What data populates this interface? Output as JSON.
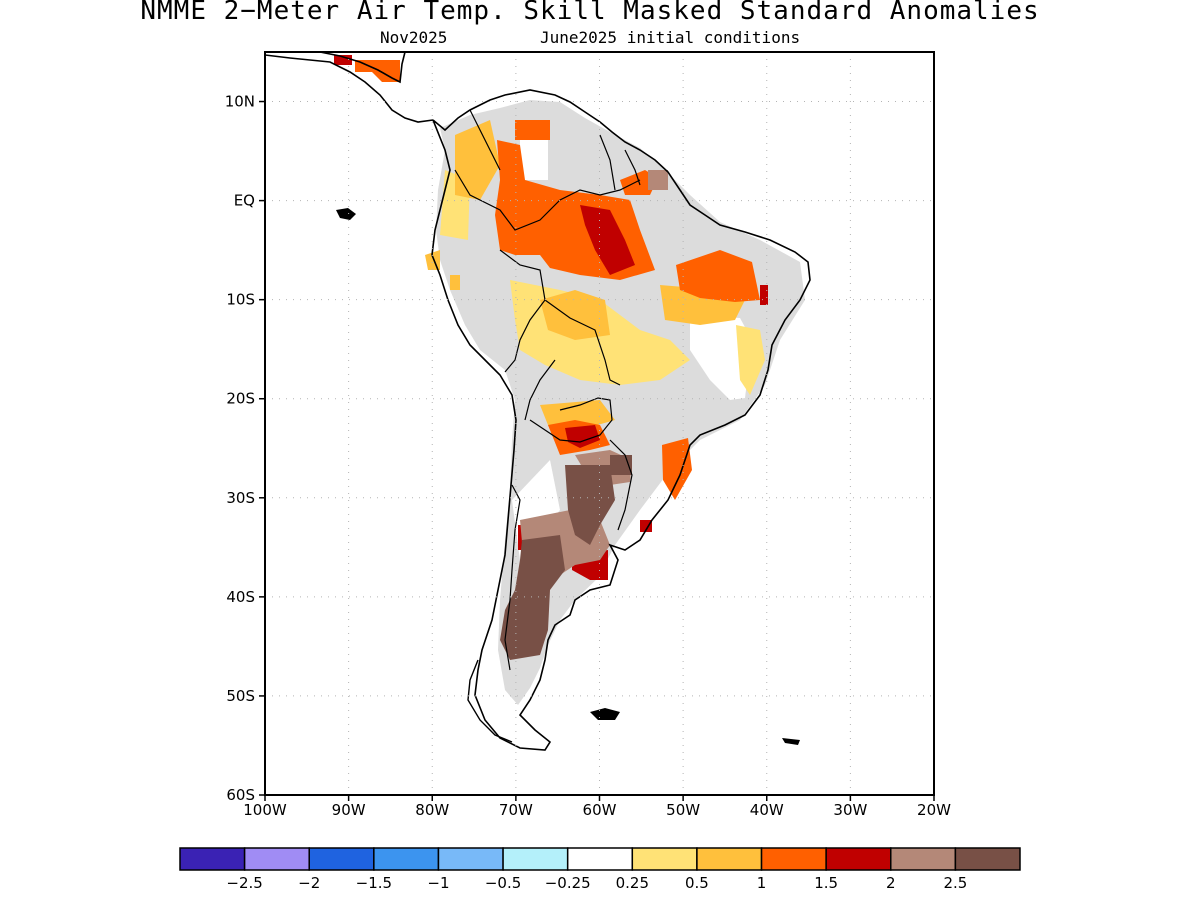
{
  "title": "NMME 2−Meter Air Temp. Skill Masked Standard Anomalies",
  "subtitle_month": "Nov2025",
  "subtitle_ic": "June2025 initial conditions",
  "lat_labels": [
    "10N",
    "EQ",
    "10S",
    "20S",
    "30S",
    "40S",
    "50S",
    "60S"
  ],
  "lat_values": [
    10,
    0,
    -10,
    -20,
    -30,
    -40,
    -50,
    -60
  ],
  "lon_labels": [
    "100W",
    "90W",
    "80W",
    "70W",
    "60W",
    "50W",
    "40W",
    "30W",
    "20W"
  ],
  "lon_values": [
    -100,
    -90,
    -80,
    -70,
    -60,
    -50,
    -40,
    -30,
    -20
  ],
  "colorbar": {
    "colors": [
      "#3a22b4",
      "#a08cf4",
      "#1f63e0",
      "#3c94ef",
      "#78b9f8",
      "#b4f0fa",
      "#ffffff",
      "#ffe276",
      "#ffc03c",
      "#ff6000",
      "#c00000",
      "#b48878",
      "#785046"
    ],
    "labels": [
      "−2.5",
      "−2",
      "−1.5",
      "−1",
      "−0.5",
      "−0.25",
      "0.25",
      "0.5",
      "1",
      "1.5",
      "2",
      "2.5"
    ]
  },
  "colors": {
    "land_mask": "#dcdcdc",
    "coast": "#000000",
    "grid": "#b4b4b4"
  }
}
